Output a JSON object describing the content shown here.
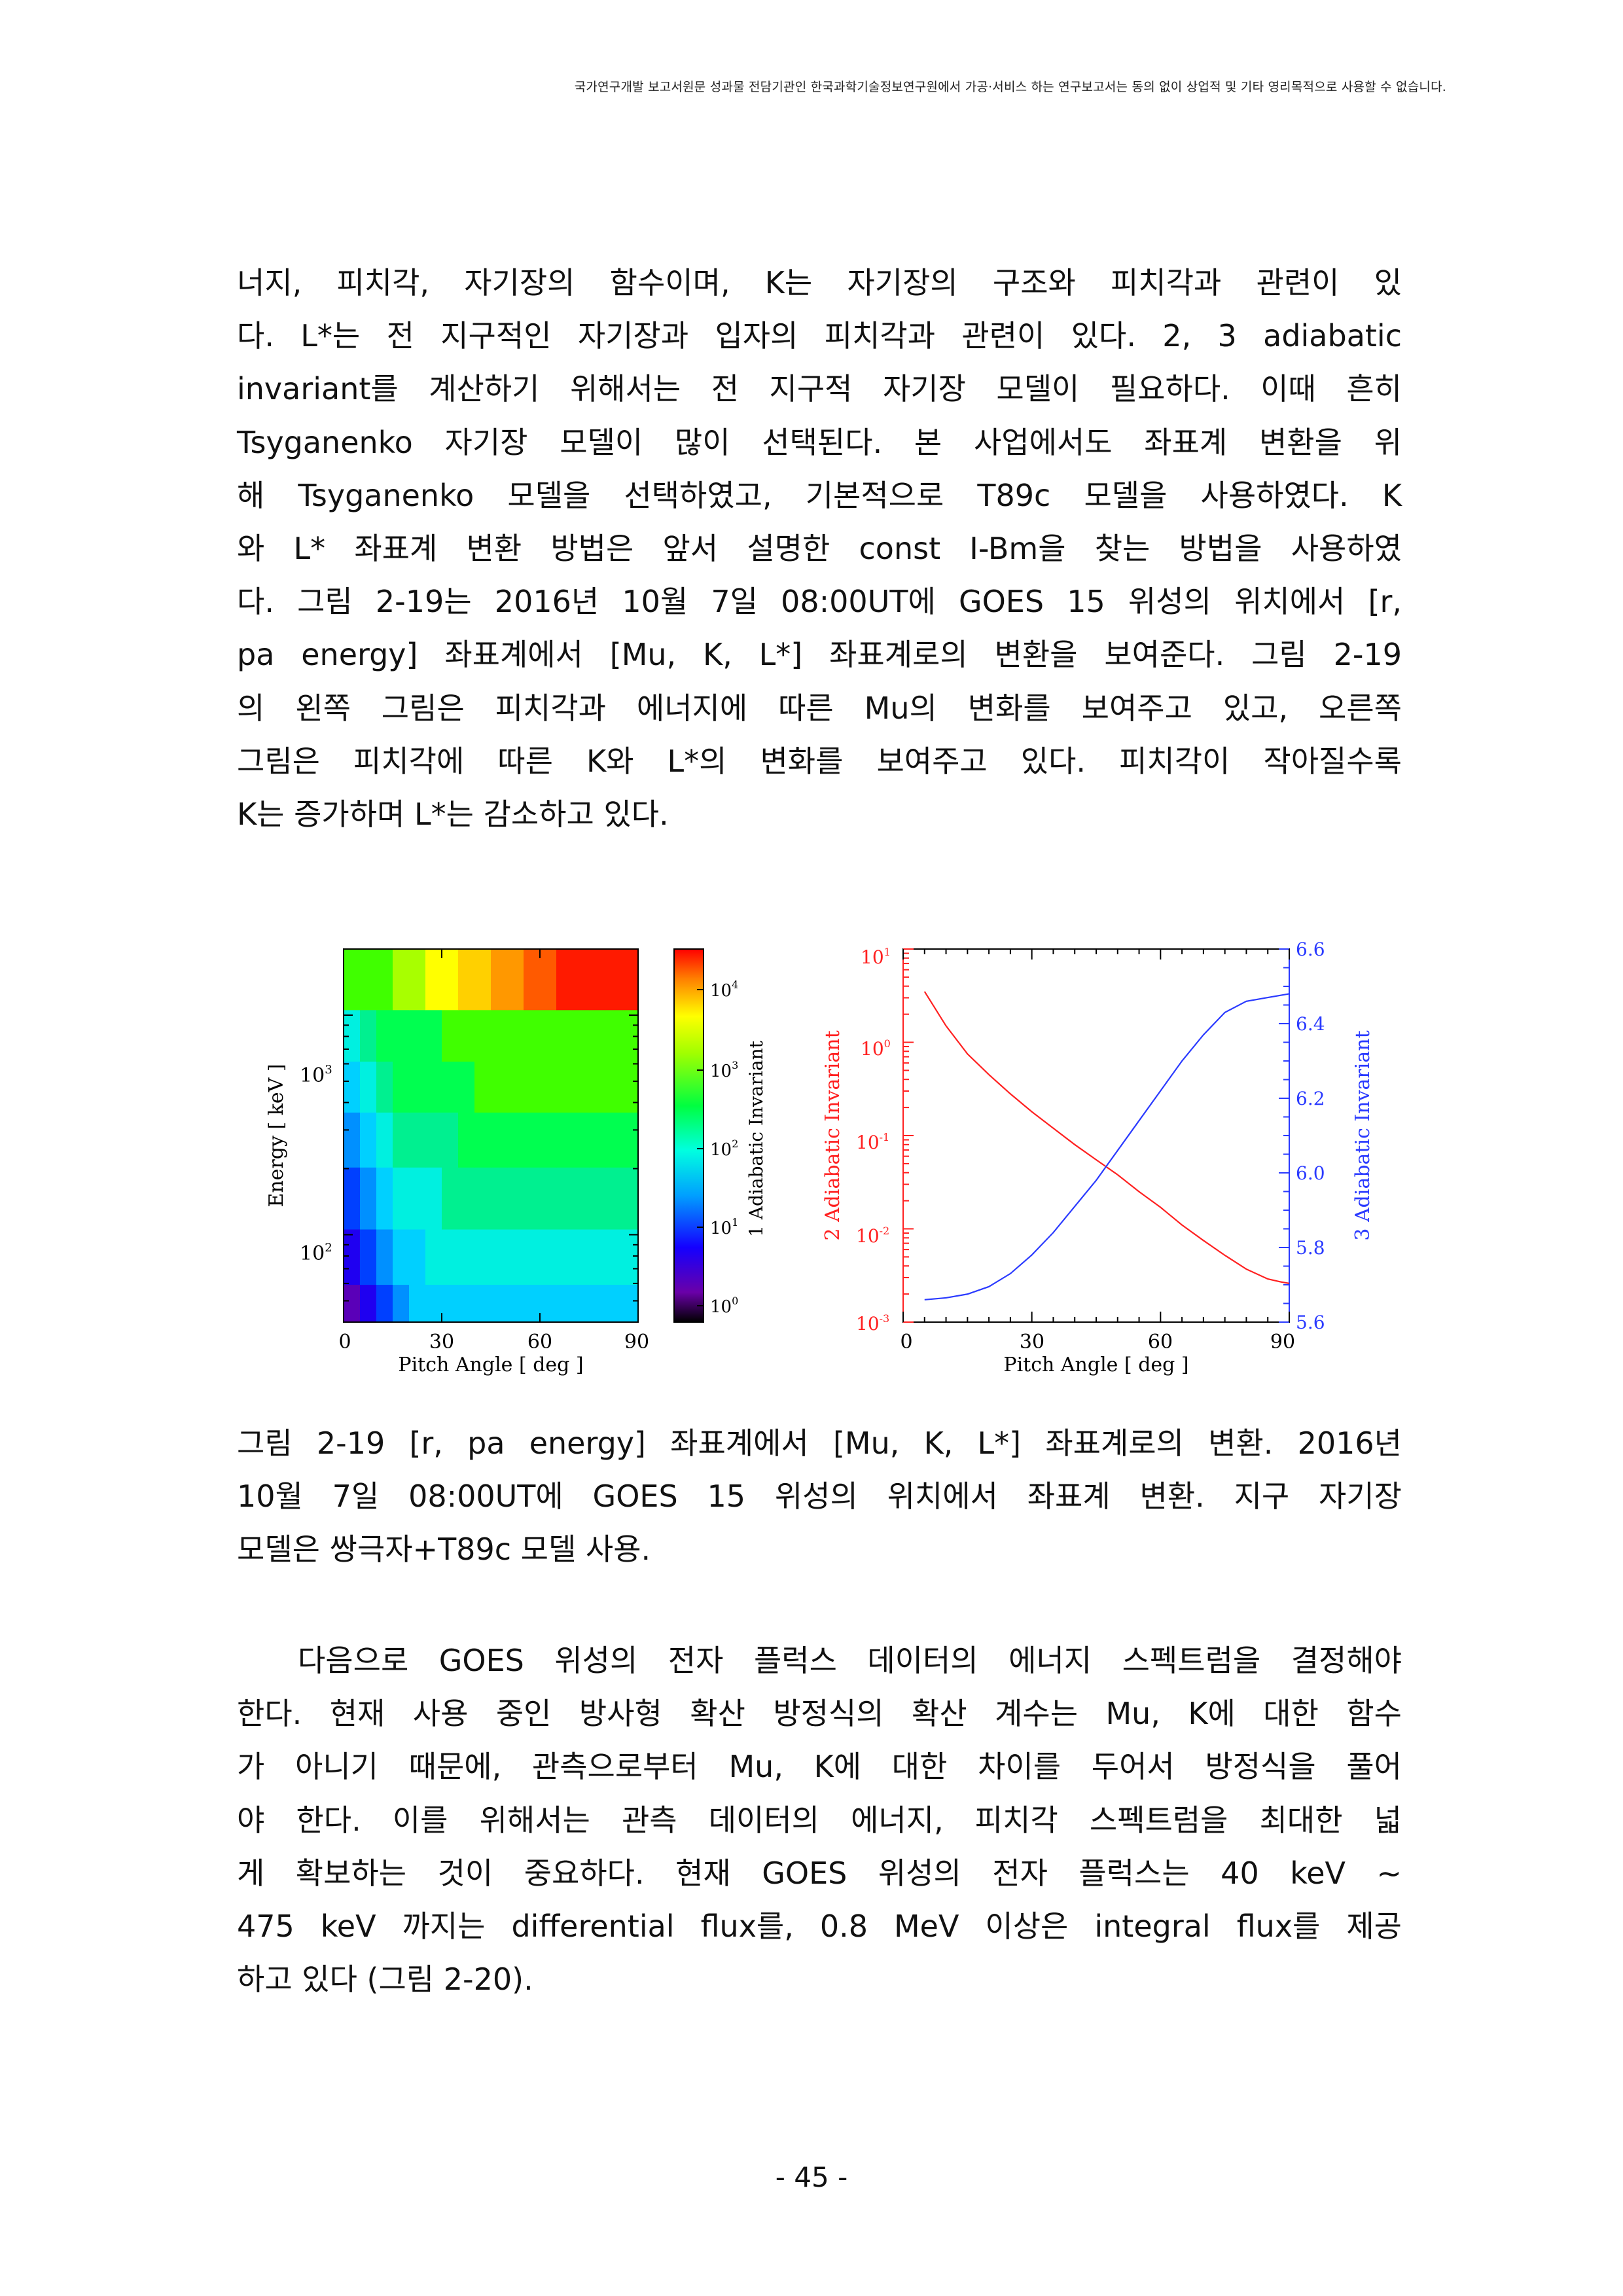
{
  "header": {
    "notice": "국가연구개발 보고서원문 성과물 전담기관인 한국과학기술정보연구원에서 가공·서비스 하는 연구보고서는 동의 없이 상업적 및 기타 영리목적으로 사용할 수 없습니다."
  },
  "paragraph1": {
    "lines": [
      "너지, 피치각, 자기장의 함수이며, K는 자기장의 구조와 피치각과 관련이 있",
      "다. L*는 전 지구적인 자기장과 입자의 피치각과 관련이 있다. 2, 3 adiabatic",
      "invariant를 계산하기 위해서는 전 지구적 자기장 모델이 필요하다. 이때 흔히",
      "Tsyganenko 자기장 모델이 많이 선택된다. 본 사업에서도 좌표계 변환을 위",
      "해 Tsyganenko 모델을 선택하였고, 기본적으로 T89c 모델을 사용하였다. K",
      "와 L* 좌표계 변환 방법은 앞서 설명한 const I-Bm을 찾는 방법을 사용하였",
      "다. 그림 2-19는 2016년 10월 7일 08:00UT에 GOES 15 위성의 위치에서 [r,",
      "pa energy] 좌표계에서 [Mu, K, L*] 좌표계로의 변환을 보여준다. 그림 2-19",
      "의 왼쪽 그림은 피치각과 에너지에 따른 Mu의 변화를 보여주고 있고, 오른쪽",
      "그림은 피치각에 따른 K와 L*의 변화를 보여주고 있다. 피치각이 작아질수록",
      "K는 증가하며 L*는 감소하고 있다."
    ]
  },
  "figure": {
    "left": {
      "xlabel": "Pitch Angle [ deg ]",
      "ylabel": "Energy [ keV ]",
      "xticks": [
        "0",
        "30",
        "60",
        "90"
      ],
      "colorbar_label": "1 Adiabatic Invariant",
      "colors": [
        "#3a0070",
        "#5a00b8",
        "#1f00f0",
        "#0040ff",
        "#0090ff",
        "#00d0ff",
        "#00f0e0",
        "#00f090",
        "#00ff50",
        "#40ff00",
        "#a8ff00",
        "#ffff00",
        "#ffd000",
        "#ff9800",
        "#ff5a00",
        "#ff1a00"
      ]
    },
    "right": {
      "xlabel": "Pitch Angle [ deg ]",
      "xticks": [
        "0",
        "30",
        "60",
        "90"
      ],
      "ylabel_left": "2 Adiabatic Invariant",
      "ylabel_right": "3 Adiabatic Invariant",
      "right_ticks": [
        "5.6",
        "5.8",
        "6.0",
        "6.2",
        "6.4",
        "6.6"
      ],
      "k_color": "#ff2020",
      "lstar_color": "#2a3aff"
    }
  },
  "chart_data": [
    {
      "type": "heatmap",
      "xlabel": "Pitch Angle [ deg ]",
      "ylabel": "Energy [ keV ]",
      "xlim": [
        0,
        90
      ],
      "ylim": [
        40,
        2000
      ],
      "yscale": "log",
      "x": [
        5,
        10,
        15,
        20,
        25,
        30,
        35,
        40,
        45,
        50,
        55,
        60,
        65,
        70,
        75,
        80,
        85,
        90
      ],
      "y": [
        47,
        75,
        150,
        275,
        475,
        800,
        1400
      ],
      "z": [
        [
          1,
          2,
          3,
          4,
          5,
          5,
          5,
          5,
          5,
          5,
          5,
          5,
          5,
          5,
          5,
          5,
          5,
          5
        ],
        [
          2,
          3,
          4,
          5,
          5,
          6,
          6,
          6,
          6,
          6,
          6,
          6,
          6,
          6,
          6,
          6,
          6,
          6
        ],
        [
          3,
          4,
          5,
          6,
          6,
          6,
          7,
          7,
          7,
          7,
          7,
          7,
          7,
          7,
          7,
          7,
          7,
          7
        ],
        [
          4,
          5,
          6,
          7,
          7,
          7,
          7,
          8,
          8,
          8,
          8,
          8,
          8,
          8,
          8,
          8,
          8,
          8
        ],
        [
          5,
          6,
          7,
          8,
          8,
          8,
          8,
          8,
          9,
          9,
          9,
          9,
          9,
          9,
          9,
          9,
          9,
          9
        ],
        [
          6,
          7,
          8,
          8,
          8,
          8,
          9,
          9,
          9,
          9,
          9,
          9,
          9,
          9,
          9,
          9,
          9,
          9
        ],
        [
          9,
          9,
          9,
          10,
          10,
          11,
          11,
          12,
          12,
          13,
          13,
          14,
          14,
          15,
          15,
          15,
          15,
          15
        ]
      ],
      "colorbar_label": "1 Adiabatic Invariant",
      "colorbar_scale": "log",
      "colorbar_ticks": [
        "10^0",
        "10^1",
        "10^2",
        "10^3",
        "10^4"
      ]
    },
    {
      "type": "line",
      "xlabel": "Pitch Angle [ deg ]",
      "xlim": [
        0,
        90
      ],
      "series": [
        {
          "name": "2 Adiabatic Invariant",
          "axis": "left",
          "yscale": "log",
          "ylim": [
            0.001,
            10
          ],
          "x": [
            5,
            10,
            15,
            20,
            25,
            30,
            35,
            40,
            45,
            50,
            55,
            60,
            65,
            70,
            75,
            80,
            85,
            88,
            90
          ],
          "values": [
            3.5,
            1.5,
            0.75,
            0.45,
            0.28,
            0.18,
            0.12,
            0.08,
            0.055,
            0.038,
            0.025,
            0.017,
            0.011,
            0.0075,
            0.0052,
            0.0037,
            0.0029,
            0.0027,
            0.0026
          ]
        },
        {
          "name": "3 Adiabatic Invariant",
          "axis": "right",
          "ylim": [
            5.6,
            6.6
          ],
          "x": [
            5,
            10,
            15,
            20,
            25,
            30,
            35,
            40,
            45,
            50,
            55,
            60,
            65,
            70,
            75,
            80,
            85,
            90
          ],
          "values": [
            5.66,
            5.665,
            5.675,
            5.695,
            5.73,
            5.78,
            5.84,
            5.91,
            5.98,
            6.06,
            6.14,
            6.22,
            6.3,
            6.37,
            6.43,
            6.46,
            6.47,
            6.48
          ]
        }
      ],
      "left_ticks": [
        "10^-3",
        "10^-2",
        "10^-1",
        "10^0",
        "10^1"
      ],
      "right_ticks": [
        "5.6",
        "5.8",
        "6.0",
        "6.2",
        "6.4",
        "6.6"
      ]
    }
  ],
  "caption": {
    "lines": [
      "그림 2-19 [r, pa energy] 좌표계에서 [Mu, K, L*] 좌표계로의 변환. 2016년",
      "10월 7일 08:00UT에 GOES 15 위성의 위치에서 좌표계 변환. 지구 자기장",
      "모델은 쌍극자+T89c 모델 사용."
    ]
  },
  "paragraph2": {
    "lines": [
      "  다음으로 GOES 위성의 전자 플럭스 데이터의 에너지 스펙트럼을 결정해야",
      "한다. 현재 사용 중인 방사형 확산 방정식의 확산 계수는 Mu, K에 대한 함수",
      "가 아니기 때문에, 관측으로부터 Mu, K에 대한 차이를 두어서 방정식을 풀어",
      "야 한다. 이를 위해서는 관측 데이터의 에너지, 피치각 스펙트럼을 최대한 넓",
      "게 확보하는 것이 중요하다. 현재 GOES 위성의 전자 플럭스는 40 keV ~",
      "475 keV 까지는 differential flux를, 0.8 MeV 이상은 integral flux를 제공",
      "하고 있다 (그림 2-20)."
    ]
  },
  "page_number": "- 45 -"
}
